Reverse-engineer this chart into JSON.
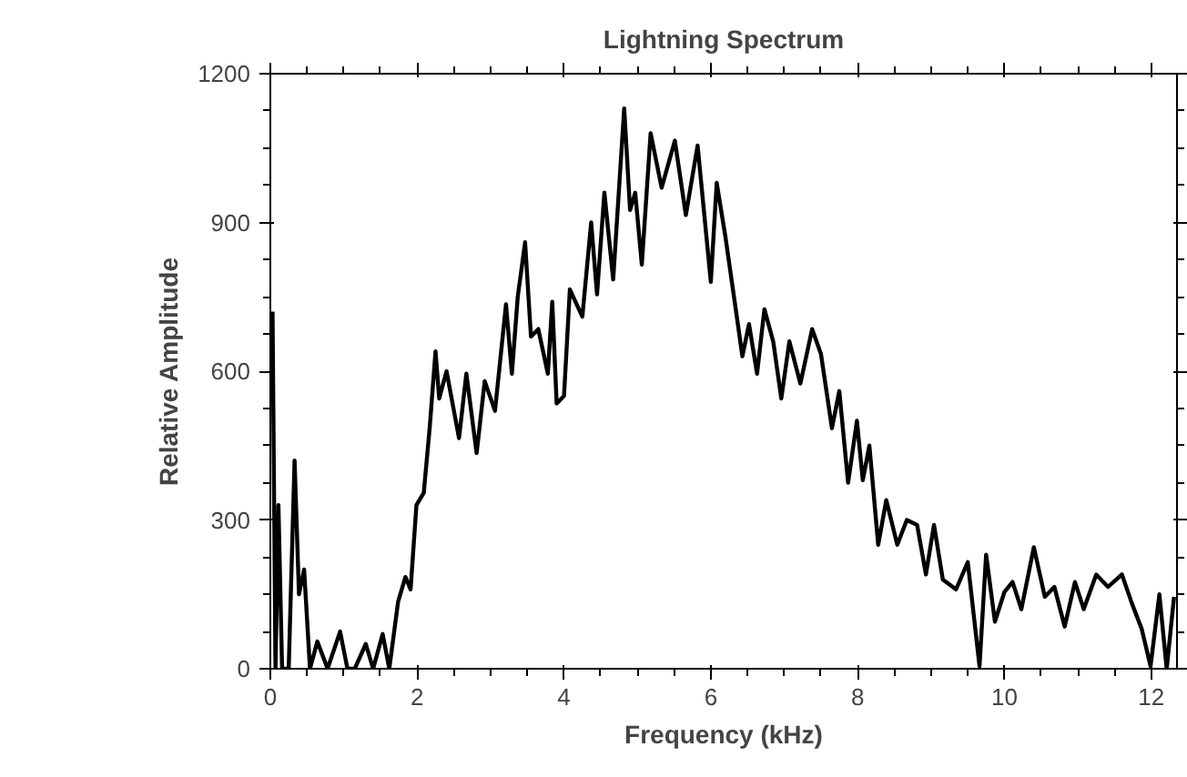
{
  "chart_data": {
    "type": "line",
    "title": "Lightning Spectrum",
    "xlabel": "Frequency (kHz)",
    "ylabel": "Relative Amplitude",
    "x": [
      0.03,
      0.07,
      0.11,
      0.16,
      0.25,
      0.33,
      0.39,
      0.46,
      0.54,
      0.64,
      0.78,
      0.95,
      1.05,
      1.15,
      1.3,
      1.4,
      1.53,
      1.62,
      1.74,
      1.84,
      1.91,
      1.99,
      2.09,
      2.17,
      2.25,
      2.3,
      2.4,
      2.57,
      2.67,
      2.81,
      2.92,
      3.06,
      3.13,
      3.21,
      3.29,
      3.37,
      3.47,
      3.55,
      3.65,
      3.78,
      3.84,
      3.9,
      4.0,
      4.08,
      4.25,
      4.37,
      4.45,
      4.55,
      4.67,
      4.82,
      4.9,
      4.97,
      5.06,
      5.18,
      5.33,
      5.51,
      5.66,
      5.82,
      6.0,
      6.08,
      6.2,
      6.33,
      6.43,
      6.52,
      6.63,
      6.73,
      6.85,
      6.96,
      7.07,
      7.22,
      7.38,
      7.5,
      7.65,
      7.75,
      7.87,
      7.99,
      8.07,
      8.16,
      8.28,
      8.39,
      8.54,
      8.67,
      8.81,
      8.93,
      9.04,
      9.16,
      9.34,
      9.5,
      9.66,
      9.75,
      9.87,
      10.0,
      10.11,
      10.23,
      10.4,
      10.55,
      10.68,
      10.82,
      10.96,
      11.08,
      11.25,
      11.41,
      11.6,
      11.74,
      11.87,
      11.99,
      12.11,
      12.21,
      12.31
    ],
    "values": [
      720,
      0,
      330,
      0,
      0,
      420,
      150,
      200,
      0,
      55,
      0,
      75,
      0,
      0,
      50,
      0,
      70,
      0,
      135,
      185,
      160,
      330,
      355,
      485,
      640,
      545,
      600,
      465,
      595,
      435,
      580,
      520,
      620,
      735,
      595,
      750,
      860,
      670,
      685,
      595,
      740,
      535,
      550,
      765,
      710,
      900,
      755,
      960,
      785,
      1130,
      925,
      960,
      815,
      1080,
      970,
      1065,
      915,
      1055,
      780,
      980,
      870,
      735,
      630,
      695,
      595,
      725,
      660,
      545,
      660,
      575,
      685,
      635,
      485,
      560,
      375,
      500,
      380,
      450,
      250,
      340,
      250,
      300,
      290,
      190,
      290,
      180,
      160,
      215,
      5,
      230,
      95,
      155,
      175,
      120,
      245,
      145,
      165,
      85,
      175,
      120,
      190,
      165,
      190,
      130,
      80,
      5,
      150,
      0,
      145
    ],
    "color": "#000000",
    "xlim": [
      0,
      12.35
    ],
    "ylim": [
      0,
      1200
    ],
    "xticks": [
      0,
      2,
      4,
      6,
      8,
      10,
      12
    ],
    "yticks": [
      0,
      300,
      600,
      900,
      1200
    ],
    "grid": false,
    "marker": "none",
    "line_style": "solid"
  }
}
